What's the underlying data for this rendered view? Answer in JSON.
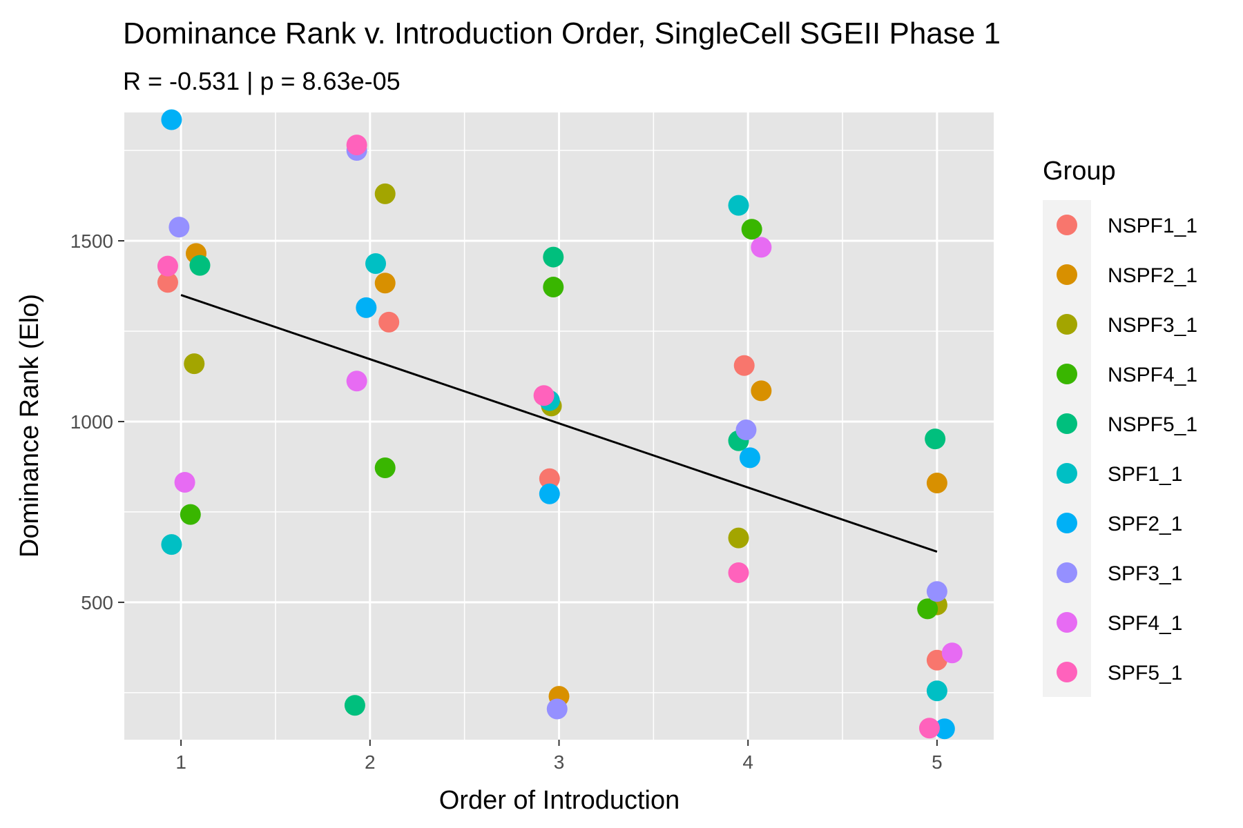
{
  "chart_data": {
    "type": "scatter",
    "title": "Dominance Rank v. Introduction Order, SingleCell SGEII Phase 1",
    "subtitle": "R = -0.531 | p = 8.63e-05",
    "xlabel": "Order of Introduction",
    "ylabel": "Dominance Rank (Elo)",
    "xlim": [
      0.7,
      5.3
    ],
    "ylim": [
      120,
      1855
    ],
    "x_ticks": [
      1,
      2,
      3,
      4,
      5
    ],
    "x_tick_labels": [
      "1",
      "2",
      "3",
      "4",
      "5"
    ],
    "y_ticks": [
      500,
      1000,
      1500
    ],
    "y_tick_labels": [
      "500",
      "1000",
      "1500"
    ],
    "grid": true,
    "legend": {
      "title": "Group",
      "position": "right"
    },
    "trend_line": {
      "x": [
        1,
        5
      ],
      "y": [
        1350,
        640
      ]
    },
    "series": [
      {
        "name": "NSPF1_1",
        "color": "#F8766D",
        "points": [
          [
            0.93,
            1385
          ],
          [
            2.1,
            1275
          ],
          [
            2.95,
            842
          ],
          [
            3.98,
            1155
          ],
          [
            5.0,
            340
          ]
        ]
      },
      {
        "name": "NSPF2_1",
        "color": "#D89000",
        "points": [
          [
            1.08,
            1465
          ],
          [
            2.08,
            1383
          ],
          [
            3.0,
            240
          ],
          [
            4.07,
            1085
          ],
          [
            5.0,
            830
          ]
        ]
      },
      {
        "name": "NSPF3_1",
        "color": "#A3A500",
        "points": [
          [
            1.07,
            1160
          ],
          [
            2.08,
            1630
          ],
          [
            2.96,
            1043
          ],
          [
            3.95,
            678
          ],
          [
            5.0,
            493
          ]
        ]
      },
      {
        "name": "NSPF4_1",
        "color": "#39B600",
        "points": [
          [
            1.05,
            743
          ],
          [
            2.08,
            872
          ],
          [
            2.97,
            1372
          ],
          [
            4.02,
            1532
          ],
          [
            4.95,
            482
          ]
        ]
      },
      {
        "name": "NSPF5_1",
        "color": "#00BF7D",
        "points": [
          [
            1.1,
            1432
          ],
          [
            1.92,
            215
          ],
          [
            2.97,
            1455
          ],
          [
            3.95,
            947
          ],
          [
            4.99,
            952
          ]
        ]
      },
      {
        "name": "SPF1_1",
        "color": "#00BFC4",
        "points": [
          [
            0.95,
            660
          ],
          [
            2.03,
            1437
          ],
          [
            2.95,
            1058
          ],
          [
            3.95,
            1598
          ],
          [
            5.0,
            255
          ]
        ]
      },
      {
        "name": "SPF2_1",
        "color": "#00B0F6",
        "points": [
          [
            0.95,
            1835
          ],
          [
            1.98,
            1315
          ],
          [
            2.95,
            800
          ],
          [
            4.01,
            900
          ],
          [
            5.04,
            150
          ]
        ]
      },
      {
        "name": "SPF3_1",
        "color": "#9590FF",
        "points": [
          [
            0.99,
            1538
          ],
          [
            1.93,
            1750
          ],
          [
            2.99,
            205
          ],
          [
            3.99,
            977
          ],
          [
            5.0,
            530
          ]
        ]
      },
      {
        "name": "SPF4_1",
        "color": "#E76BF3",
        "points": [
          [
            1.02,
            832
          ],
          [
            1.93,
            1112
          ],
          [
            4.07,
            1482
          ],
          [
            5.08,
            360
          ]
        ]
      },
      {
        "name": "SPF5_1",
        "color": "#FF62BC",
        "points": [
          [
            0.93,
            1430
          ],
          [
            1.93,
            1765
          ],
          [
            2.92,
            1072
          ],
          [
            3.95,
            582
          ],
          [
            4.96,
            152
          ]
        ]
      }
    ]
  },
  "colors": {
    "panel_background": "#E5E5E5",
    "grid": "#FFFFFF",
    "trend_line": "#000000",
    "text": "#000000",
    "tick_text": "#4D4D4D",
    "legend_key_background": "#F2F2F2"
  }
}
